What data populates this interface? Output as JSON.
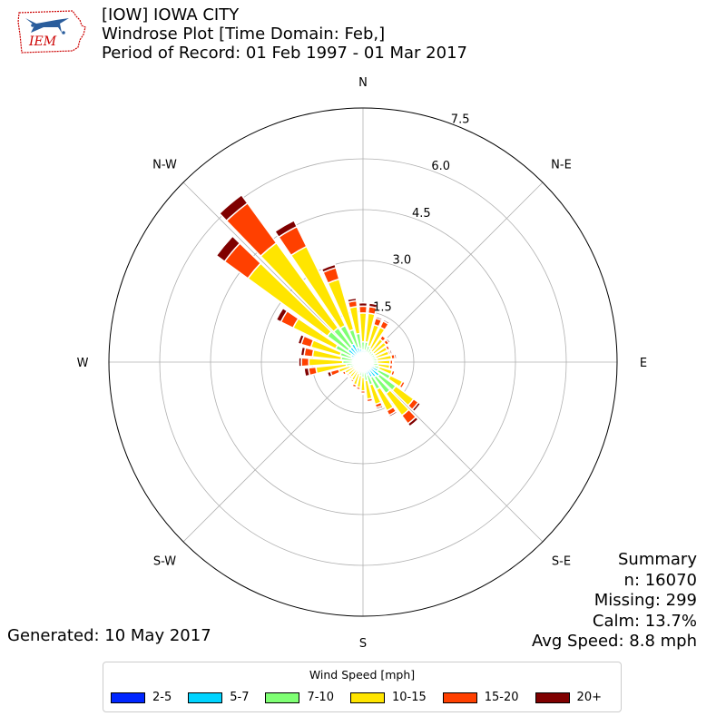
{
  "header": {
    "title_line1": "[IOW] IOWA CITY",
    "title_line2": "Windrose Plot [Time Domain: Feb,]",
    "title_line3": "Period of Record: 01 Feb 1997 - 01 Mar 2017"
  },
  "logo": {
    "text": "IEM"
  },
  "summary": {
    "heading": "Summary",
    "n": "n: 16070",
    "missing": "Missing: 299",
    "calm": "Calm: 13.7%",
    "avg_speed": "Avg Speed: 8.8 mph"
  },
  "generated": "Generated: 10 May 2017",
  "chart_data": {
    "type": "windrose",
    "directions_deg": [
      0,
      10,
      20,
      30,
      40,
      50,
      60,
      70,
      80,
      90,
      100,
      110,
      120,
      130,
      140,
      150,
      160,
      170,
      180,
      190,
      200,
      210,
      220,
      230,
      240,
      250,
      260,
      270,
      280,
      290,
      300,
      310,
      320,
      330,
      340,
      350
    ],
    "compass_labels": [
      {
        "label": "N",
        "deg": 0
      },
      {
        "label": "N-E",
        "deg": 45
      },
      {
        "label": "E",
        "deg": 90
      },
      {
        "label": "S-E",
        "deg": 135
      },
      {
        "label": "S",
        "deg": 180
      },
      {
        "label": "S-W",
        "deg": 225
      },
      {
        "label": "W",
        "deg": 270
      },
      {
        "label": "N-W",
        "deg": 315
      }
    ],
    "radial_ticks": [
      1.5,
      3.0,
      4.5,
      6.0,
      7.5
    ],
    "rmax": 7.5,
    "legend_title": "Wind Speed [mph]",
    "bins": [
      {
        "label": "2-5",
        "color": "#0026ff"
      },
      {
        "label": "5-7",
        "color": "#00d4ff"
      },
      {
        "label": "7-10",
        "color": "#7fff74"
      },
      {
        "label": "10-15",
        "color": "#ffe500"
      },
      {
        "label": "15-20",
        "color": "#ff4000"
      },
      {
        "label": "20+",
        "color": "#7f0000"
      }
    ],
    "cumulative": [
      [
        0.15,
        0.35,
        0.6,
        1.45,
        1.65,
        1.75
      ],
      [
        0.17,
        0.35,
        0.6,
        1.45,
        1.65,
        1.75
      ],
      [
        0.14,
        0.3,
        0.5,
        1.15,
        1.35,
        1.4
      ],
      [
        0.12,
        0.3,
        0.45,
        1.15,
        1.35,
        1.4
      ],
      [
        0.1,
        0.25,
        0.4,
        0.85,
        0.97,
        1.0
      ],
      [
        0.12,
        0.25,
        0.4,
        0.85,
        0.95,
        1.0
      ],
      [
        0.12,
        0.25,
        0.4,
        0.8,
        0.88,
        0.9
      ],
      [
        0.12,
        0.25,
        0.4,
        0.8,
        0.85,
        0.9
      ],
      [
        0.12,
        0.25,
        0.42,
        0.85,
        0.95,
        1.0
      ],
      [
        0.12,
        0.25,
        0.42,
        0.8,
        0.88,
        0.9
      ],
      [
        0.15,
        0.3,
        0.45,
        0.8,
        0.88,
        0.9
      ],
      [
        0.15,
        0.35,
        0.5,
        0.9,
        0.98,
        1.0
      ],
      [
        0.15,
        0.5,
        0.9,
        1.3,
        1.38,
        1.4
      ],
      [
        0.15,
        0.6,
        1.2,
        1.85,
        2.02,
        2.1
      ],
      [
        0.15,
        0.55,
        1.15,
        1.95,
        2.25,
        2.35
      ],
      [
        0.15,
        0.5,
        0.9,
        1.6,
        1.75,
        1.8
      ],
      [
        0.12,
        0.4,
        0.7,
        1.3,
        1.4,
        1.45
      ],
      [
        0.1,
        0.3,
        0.55,
        1.1,
        1.18,
        1.2
      ],
      [
        0.1,
        0.25,
        0.45,
        0.85,
        0.92,
        0.95
      ],
      [
        0.1,
        0.25,
        0.4,
        0.75,
        0.82,
        0.85
      ],
      [
        0.1,
        0.2,
        0.35,
        0.7,
        0.78,
        0.8
      ],
      [
        0.1,
        0.2,
        0.3,
        0.6,
        0.66,
        0.7
      ],
      [
        0.1,
        0.2,
        0.3,
        0.55,
        0.6,
        0.62
      ],
      [
        0.1,
        0.2,
        0.3,
        0.55,
        0.6,
        0.62
      ],
      [
        0.1,
        0.2,
        0.3,
        0.6,
        0.68,
        0.7
      ],
      [
        0.12,
        0.25,
        0.4,
        0.75,
        1.0,
        1.1
      ],
      [
        0.12,
        0.25,
        0.5,
        1.4,
        1.62,
        1.75
      ],
      [
        0.15,
        0.3,
        0.6,
        1.6,
        1.82,
        1.9
      ],
      [
        0.15,
        0.3,
        0.65,
        1.5,
        1.75,
        1.85
      ],
      [
        0.15,
        0.35,
        0.7,
        1.6,
        1.9,
        2.0
      ],
      [
        0.15,
        0.4,
        0.9,
        2.3,
        2.7,
        2.85
      ],
      [
        0.2,
        0.55,
        1.3,
        4.2,
        5.05,
        5.35
      ],
      [
        0.2,
        0.55,
        1.25,
        4.35,
        5.8,
        6.1
      ],
      [
        0.2,
        0.6,
        1.2,
        3.8,
        4.45,
        4.65
      ],
      [
        0.18,
        0.45,
        1.0,
        2.55,
        2.9,
        3.0
      ],
      [
        0.16,
        0.4,
        0.85,
        1.65,
        1.82,
        1.9
      ]
    ]
  }
}
